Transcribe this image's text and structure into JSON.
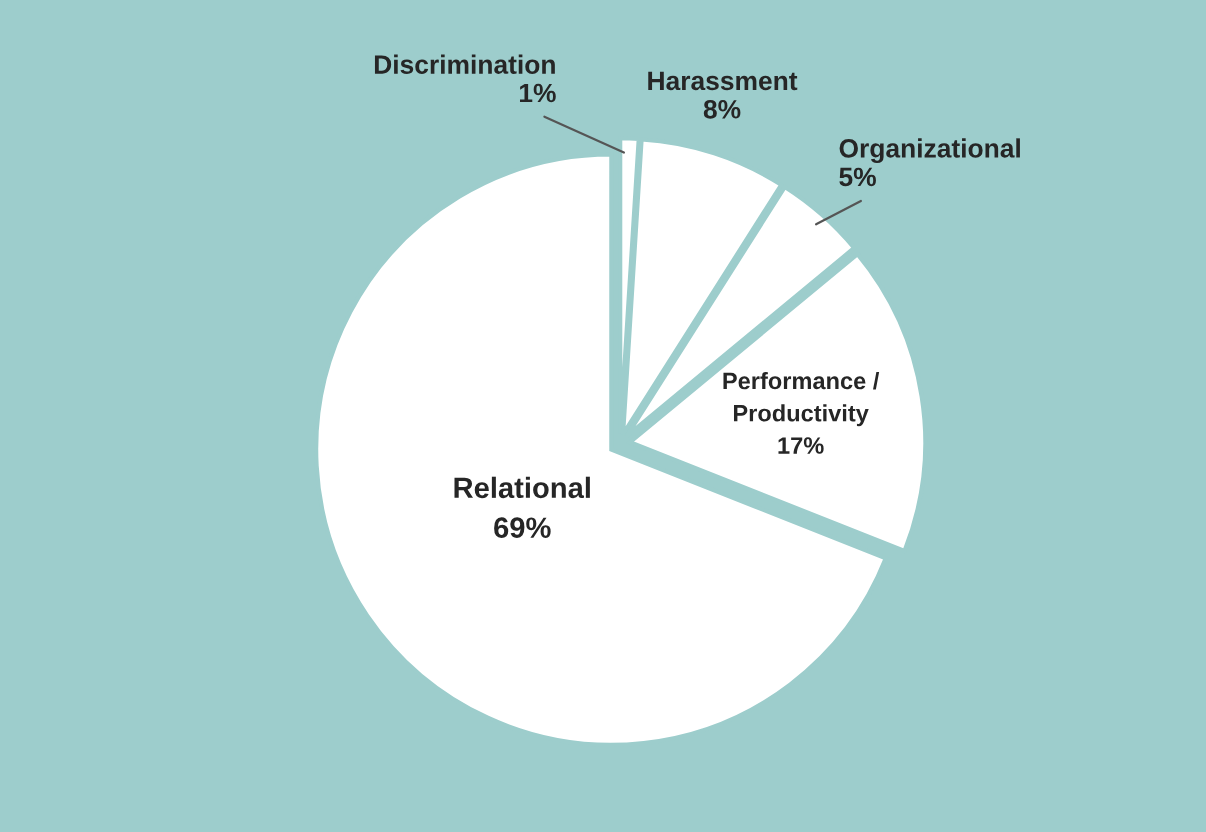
{
  "chart_data": {
    "type": "pie",
    "categories": [
      "Discrimination",
      "Harassment",
      "Organizational",
      "Performance /\nProductivity",
      "Relational"
    ],
    "values": [
      1,
      8,
      5,
      17,
      69
    ],
    "value_labels": [
      "1%",
      "8%",
      "5%",
      "17%",
      "69%"
    ],
    "colors": [
      "#ffffff",
      "#ffffff",
      "#ffffff",
      "#ffffff",
      "#ffffff"
    ],
    "legend": false
  }
}
